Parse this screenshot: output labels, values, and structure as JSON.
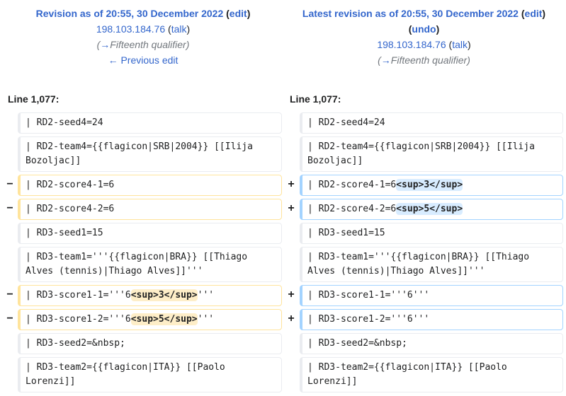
{
  "left_revision": {
    "title": "Revision as of 20:55, 30 December 2022",
    "edit_label": "edit",
    "user": "198.103.184.76",
    "talk_label": "talk",
    "summary_arrow": "→",
    "summary": "Fifteenth qualifier",
    "prev_link": "← Previous edit"
  },
  "right_revision": {
    "title": "Latest revision as of 20:55, 30 December 2022",
    "edit_label": "edit",
    "undo_label": "undo",
    "user": "198.103.184.76",
    "talk_label": "talk",
    "summary_arrow": "→",
    "summary": "Fifteenth qualifier"
  },
  "line_label_left": "Line 1,077:",
  "line_label_right": "Line 1,077:",
  "markers": {
    "del": "−",
    "add": "+"
  },
  "rows": [
    {
      "left": "| RD2-seed4=24",
      "right": "| RD2-seed4=24"
    },
    {
      "left": "| RD2-team4={{flagicon|SRB|2004}} [[Ilija Bozoljac]]",
      "right": "| RD2-team4={{flagicon|SRB|2004}} [[Ilija Bozoljac]]"
    },
    {
      "left": "| RD2-score4-1=6",
      "right_pre": "| RD2-score4-1=6",
      "right_hl": "<sup>3</sup>"
    },
    {
      "left": "| RD2-score4-2=6",
      "right_pre": "| RD2-score4-2=6",
      "right_hl": "<sup>5</sup>"
    },
    {
      "left": "| RD3-seed1=15",
      "right": "| RD3-seed1=15"
    },
    {
      "left": "| RD3-team1='''{{flagicon|BRA}} [[Thiago Alves (tennis)|Thiago Alves]]'''",
      "right": "| RD3-team1='''{{flagicon|BRA}} [[Thiago Alves (tennis)|Thiago Alves]]'''"
    },
    {
      "left_pre": "| RD3-score1-1='''6",
      "left_hl": "<sup>3</sup>",
      "left_post": "'''",
      "right": "| RD3-score1-1='''6'''"
    },
    {
      "left_pre": "| RD3-score1-2='''6",
      "left_hl": "<sup>5</sup>",
      "left_post": "'''",
      "right": "| RD3-score1-2='''6'''"
    },
    {
      "left": "| RD3-seed2=&nbsp;",
      "right": "| RD3-seed2=&nbsp;"
    },
    {
      "left": "| RD3-team2={{flagicon|ITA}} [[Paolo Lorenzi]]",
      "right": "| RD3-team2={{flagicon|ITA}} [[Paolo Lorenzi]]"
    }
  ]
}
